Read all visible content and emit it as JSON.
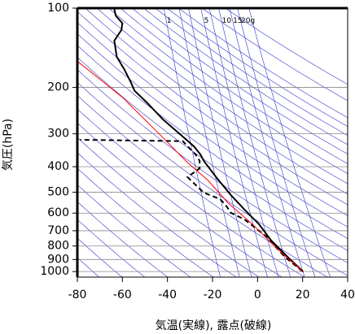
{
  "chart_data": {
    "type": "line",
    "xlabel": "気温(実線), 露点(破線)",
    "ylabel": "気圧(hPa)",
    "xlim": [
      -80,
      40
    ],
    "xticks": [
      -80,
      -60,
      -40,
      -20,
      0,
      20,
      40
    ],
    "ylim": [
      1050,
      100
    ],
    "yticks": [
      100,
      200,
      300,
      400,
      500,
      600,
      700,
      800,
      900,
      1000
    ],
    "y_log": true,
    "grid": true,
    "dry_adiabats": [
      200,
      210,
      220,
      230,
      240,
      250,
      260,
      270,
      280,
      290,
      300,
      310,
      320,
      330,
      340,
      350,
      360,
      370,
      380,
      390,
      400,
      410,
      420,
      430,
      440,
      450,
      460,
      480,
      500
    ],
    "adiabat_color": "#3333cc",
    "mixing_ratios": [
      {
        "value": 1,
        "label": "1"
      },
      2,
      3,
      {
        "value": 5,
        "label": "5"
      },
      7,
      {
        "value": 10,
        "label": "10"
      },
      {
        "value": 15,
        "label": "15"
      },
      {
        "value": 20,
        "label": "20g"
      },
      30
    ],
    "series": [
      {
        "color": "#000000",
        "dashed": false,
        "x": [
          20.2,
          14.1,
          6.1,
          0.7,
          -5.8,
          -11.9,
          -18.4,
          -23.9,
          -25.3,
          -28.2,
          -32.5,
          -41.9,
          -49.2,
          -54.6,
          -56.4,
          -59.3,
          -62.5,
          -63.6,
          -60.4,
          -60.0,
          -62.9,
          -63.6
        ],
        "y": [
          1000,
          893,
          763,
          662,
          582,
          512,
          438,
          380,
          360,
          335,
          311,
          265,
          228,
          206,
          190,
          170,
          153,
          133,
          121,
          114,
          107,
          101
        ]
      },
      {
        "color": "#000000",
        "dashed": true,
        "x": [
          20,
          12.3,
          3.3,
          -5.8,
          -11.9,
          -13.7,
          -16.6,
          -23.9,
          -31.1,
          -25.7,
          -25.7,
          -27.5,
          -30.4,
          -33.2,
          -78.8
        ],
        "y": [
          1000,
          883,
          730,
          634,
          598,
          566,
          531,
          502,
          438,
          406,
          380,
          360,
          339,
          320,
          316
        ]
      },
      {
        "color": "#ff0000",
        "dashed": false,
        "x": [
          20,
          10.5,
          -2.2,
          -13,
          -22,
          -31.1,
          -41.9,
          -60,
          -80
        ],
        "y": [
          1000,
          846,
          662,
          550,
          451,
          386,
          311,
          218,
          159
        ]
      }
    ]
  }
}
